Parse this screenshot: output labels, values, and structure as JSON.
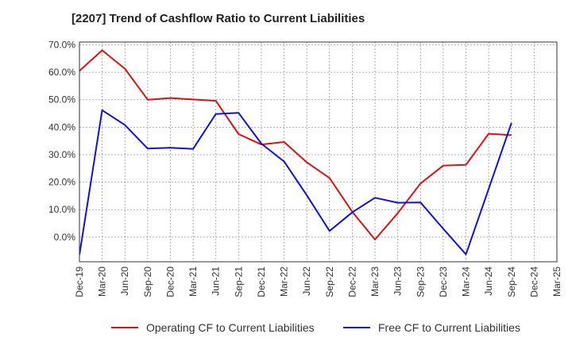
{
  "chart_data": {
    "type": "line",
    "title": "[2207]  Trend of Cashflow Ratio to Current Liabilities",
    "xlabel": "",
    "ylabel": "",
    "categories": [
      "Dec-19",
      "Mar-20",
      "Jun-20",
      "Sep-20",
      "Dec-20",
      "Mar-21",
      "Jun-21",
      "Sep-21",
      "Dec-21",
      "Mar-22",
      "Jun-22",
      "Sep-22",
      "Dec-22",
      "Mar-23",
      "Jun-23",
      "Sep-23",
      "Dec-23",
      "Mar-24",
      "Jun-24",
      "Sep-24",
      "Dec-24",
      "Mar-25"
    ],
    "ylim": [
      -9,
      71
    ],
    "yticks": [
      0,
      10,
      20,
      30,
      40,
      50,
      60,
      70
    ],
    "ytick_labels": [
      "0.0%",
      "10.0%",
      "20.0%",
      "30.0%",
      "40.0%",
      "50.0%",
      "60.0%",
      "70.0%"
    ],
    "grid": true,
    "legend_position": "bottom",
    "series": [
      {
        "name": "Operating CF to Current Liabilities",
        "color": "#dd1111",
        "values": [
          60.5,
          68.0,
          61.3,
          50.0,
          50.6,
          50.1,
          49.6,
          37.5,
          33.7,
          34.6,
          27.2,
          21.5,
          9.2,
          -0.9,
          8.7,
          19.5,
          26.0,
          26.3,
          37.6,
          37.1,
          null,
          null
        ]
      },
      {
        "name": "Free CF to Current Liabilities",
        "color": "#1111dd",
        "values": [
          -6.5,
          46.2,
          40.8,
          32.2,
          32.5,
          32.1,
          44.8,
          45.2,
          34.0,
          27.5,
          15.2,
          2.2,
          9.0,
          14.3,
          12.5,
          12.6,
          3.0,
          -6.3,
          17.5,
          41.5,
          null,
          null
        ]
      }
    ]
  }
}
